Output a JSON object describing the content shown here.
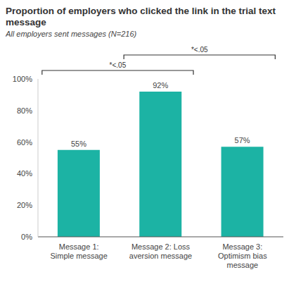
{
  "chart_data": {
    "type": "bar",
    "title": "Proportion of employers who clicked the link in the trial text message",
    "subtitle": "All employers sent messages (N=216)",
    "categories": [
      "Message 1: Simple message",
      "Message 2: Loss aversion message",
      "Message 3: Optimism bias message"
    ],
    "values": [
      55,
      92,
      57
    ],
    "value_labels": [
      "55%",
      "92%",
      "57%"
    ],
    "data_labels": true,
    "color": "#1cb3a4",
    "ylim": [
      0,
      100
    ],
    "yticks": [
      {
        "value": 0,
        "label": "0%"
      },
      {
        "value": 20,
        "label": "20%"
      },
      {
        "value": 40,
        "label": "40%"
      },
      {
        "value": 60,
        "label": "60%"
      },
      {
        "value": 80,
        "label": "80%"
      },
      {
        "value": 100,
        "label": "100%"
      }
    ],
    "grid": false,
    "annotations": [
      {
        "text": "*<.05",
        "between": [
          "Message 1: Simple message",
          "Message 2: Loss aversion message"
        ]
      },
      {
        "text": "*<.05",
        "between": [
          "Message 2: Loss aversion message",
          "Message 3: Optimism bias message"
        ]
      }
    ]
  }
}
